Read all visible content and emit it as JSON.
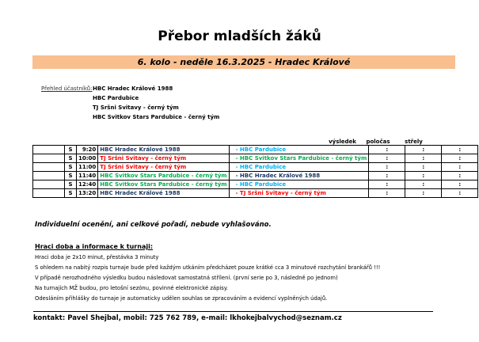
{
  "title": "Přebor mladších žáků",
  "round": "6. kolo - neděle 16.3.2025 - Hradec Králové",
  "participants_label": "Přehled účastníků:",
  "participants": [
    "HBC Hradec Králové 1988",
    "HBC Pardubice",
    "TJ Sršni Svitavy - černý tým",
    "HBC Svitkov Stars Pardubice - černý tým"
  ],
  "columns": {
    "result": "výsledek",
    "half": "poločas",
    "shots": "střely"
  },
  "team_colors": {
    "HBC Hradec Králové 1988": "#1f3864",
    "HBC Pardubice": "#00b0f0",
    "TJ Sršni Svitavy - černý tým": "#ff0000",
    "HBC Svitkov Stars Pardubice - černý tým": "#00b050"
  },
  "matches": [
    {
      "cat": "S",
      "time": "9:20",
      "home": "HBC Hradec Králové 1988",
      "away": "- HBC Pardubice",
      "result": ":",
      "half": ":",
      "shots": ":"
    },
    {
      "cat": "S",
      "time": "10:00",
      "home": "TJ Sršni Svitavy - černý tým",
      "away": "- HBC Svitkov Stars Pardubice - černý tým",
      "result": ":",
      "half": ":",
      "shots": ":"
    },
    {
      "cat": "S",
      "time": "11:00",
      "home": "TJ Sršni Svitavy - černý tým",
      "away": "- HBC Pardubice",
      "result": ":",
      "half": ":",
      "shots": ":"
    },
    {
      "cat": "S",
      "time": "11:40",
      "home": "HBC Svitkov Stars Pardubice - černý tým",
      "away": "- HBC Hradec Králové 1988",
      "result": ":",
      "half": ":",
      "shots": ":"
    },
    {
      "cat": "S",
      "time": "12:40",
      "home": "HBC Svitkov Stars Pardubice - černý tým",
      "away": "- HBC Pardubice",
      "result": ":",
      "half": ":",
      "shots": ":"
    },
    {
      "cat": "S",
      "time": "13:20",
      "home": "HBC Hradec Králové 1988",
      "away": "- TJ Sršni Svitavy - černý tým",
      "result": ":",
      "half": ":",
      "shots": ":"
    }
  ],
  "note": "Individuelní ocenění, ani celkové pořadí, nebude vyhlašováno.",
  "info_heading": "Hraci doba a informace k turnaji:",
  "info_lines": [
    "Hraci doba je 2x10 minut, přestávka 3 minuty",
    "S ohledem na nabitý rozpis turnaje bude před každým utkáním předcházet pouze krátké cca 3 minutové rozchytání brankářů !!!",
    "V případě nerozhodného výsledku budou následovat samostatná střílení. (první serie po 3, následně po jednom)",
    "Na turnajích MŽ budou, pro letošní sezónu, povinné elektronické zápisy.",
    "Odesláním přihlášky do turnaje je automaticky udělen souhlas se zpracováním a evidencí vyplněných údajů."
  ],
  "contact": "kontakt: Pavel Shejbal, mobil: 725 762 789, e-mail: lkhokejbalvychod@seznam.cz"
}
